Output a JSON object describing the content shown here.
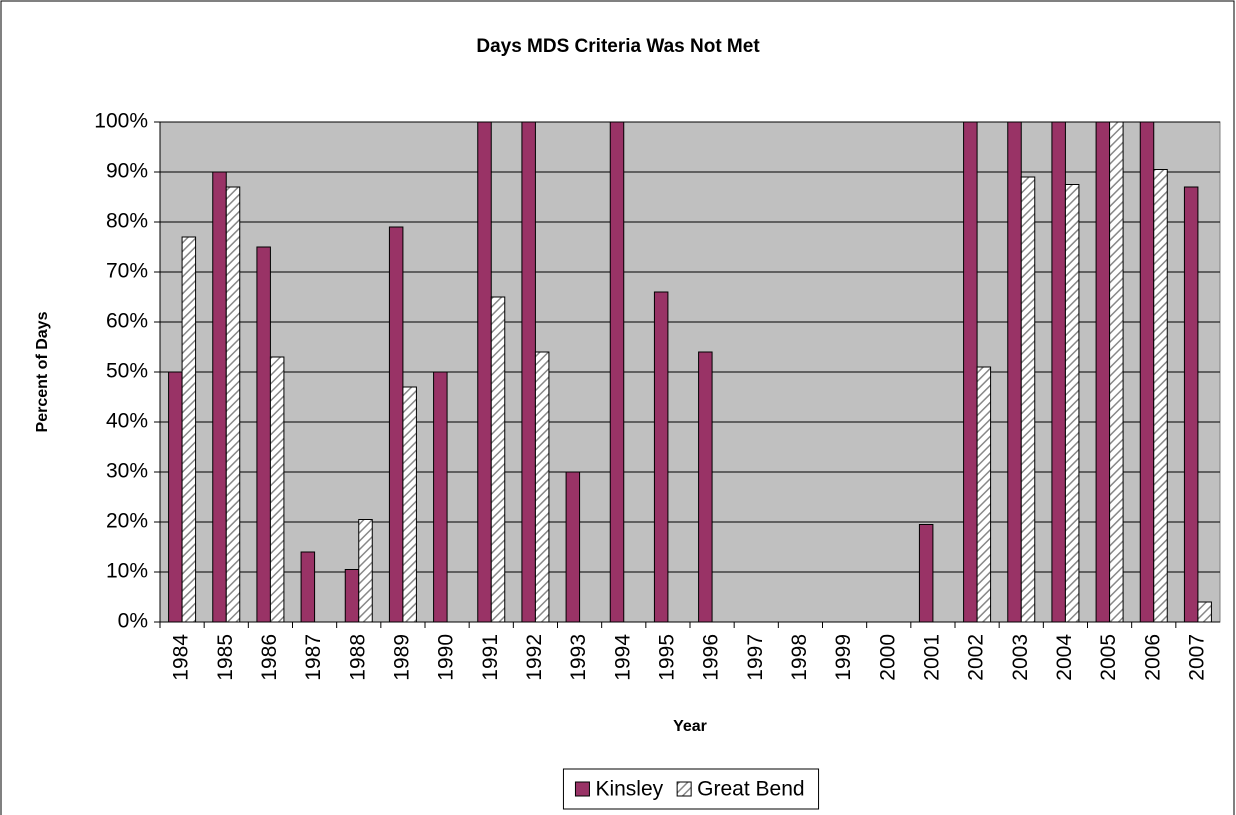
{
  "chart_data": {
    "type": "bar",
    "title": "Days MDS Criteria Was Not Met",
    "x_label": "Year",
    "y_label": "Percent of Days",
    "categories": [
      "1984",
      "1985",
      "1986",
      "1987",
      "1988",
      "1989",
      "1990",
      "1991",
      "1992",
      "1993",
      "1994",
      "1995",
      "1996",
      "1997",
      "1998",
      "1999",
      "2000",
      "2001",
      "2002",
      "2003",
      "2004",
      "2005",
      "2006",
      "2007"
    ],
    "series": [
      {
        "name": "Kinsley",
        "color": "#993366",
        "values": [
          50,
          90,
          75,
          14,
          10.5,
          79,
          50,
          100,
          100,
          30,
          100,
          66,
          54,
          0,
          0,
          0,
          0,
          19.5,
          100,
          100,
          100,
          100,
          100,
          87
        ]
      },
      {
        "name": "Great Bend",
        "color": "#ffffff",
        "hatch": true,
        "values": [
          77,
          87,
          53,
          0,
          20.5,
          47,
          0,
          65,
          54,
          0,
          0,
          0,
          0,
          0,
          0,
          0,
          0,
          0,
          51,
          89,
          87.5,
          100,
          90.5,
          4
        ]
      }
    ],
    "ylim": [
      0,
      100
    ],
    "yticks": [
      {
        "value": 0,
        "label": "0%"
      },
      {
        "value": 10,
        "label": "10%"
      },
      {
        "value": 20,
        "label": "20%"
      },
      {
        "value": 30,
        "label": "30%"
      },
      {
        "value": 40,
        "label": "40%"
      },
      {
        "value": 50,
        "label": "50%"
      },
      {
        "value": 60,
        "label": "60%"
      },
      {
        "value": 70,
        "label": "70%"
      },
      {
        "value": 80,
        "label": "80%"
      },
      {
        "value": 90,
        "label": "90%"
      },
      {
        "value": 100,
        "label": "100%"
      }
    ],
    "grid": true,
    "plot_background": "#c0c0c0",
    "legend": "bottom"
  }
}
